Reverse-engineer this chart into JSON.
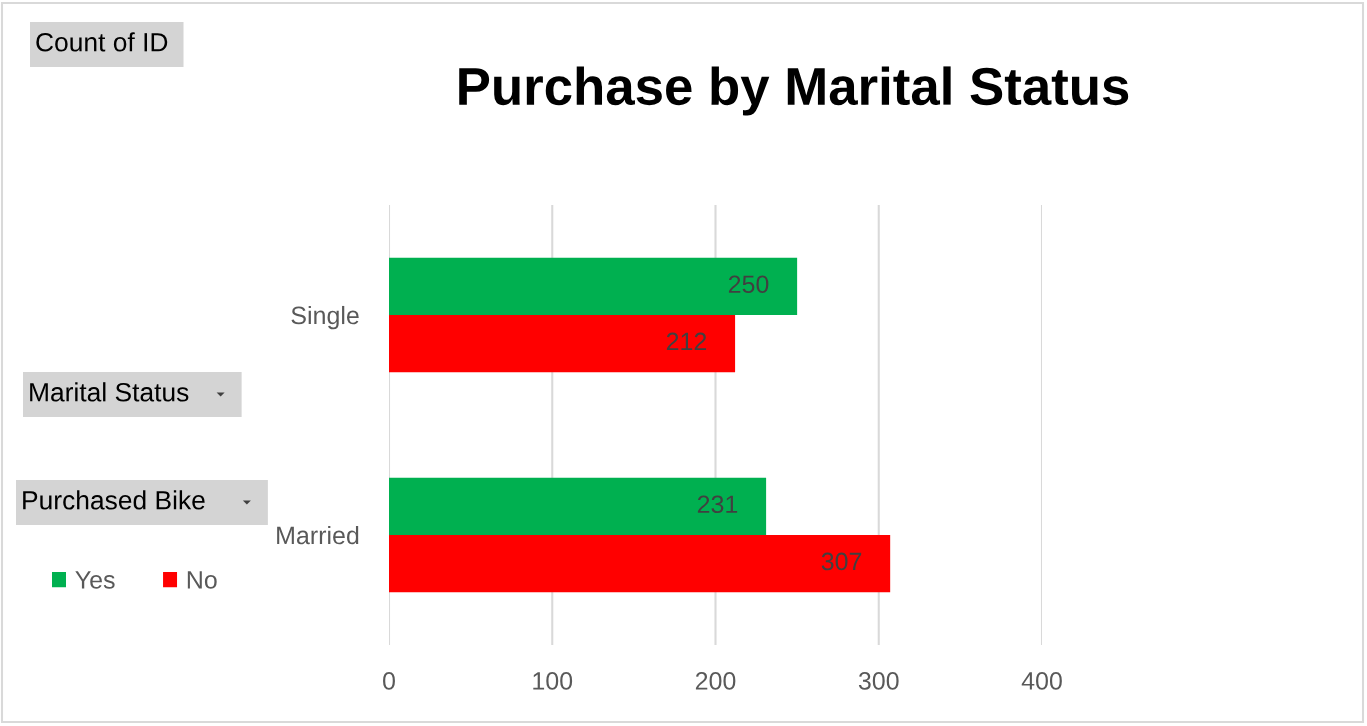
{
  "chart_data": {
    "type": "bar",
    "orientation": "horizontal",
    "title": "Purchase by Marital Status",
    "ylabel": "Marital Status",
    "legend_title": "Purchased Bike",
    "annotations": [
      "Count of ID"
    ],
    "categories": [
      "Single",
      "Married"
    ],
    "series": [
      {
        "name": "Yes",
        "color": "#00b050",
        "values": [
          250,
          231
        ]
      },
      {
        "name": "No",
        "color": "#ff0000",
        "values": [
          212,
          307
        ]
      }
    ],
    "xlim": [
      0,
      400
    ],
    "xticks": [
      0,
      100,
      200,
      300,
      400
    ],
    "grid": "x",
    "legend": "bottom left",
    "data_labels": true
  }
}
